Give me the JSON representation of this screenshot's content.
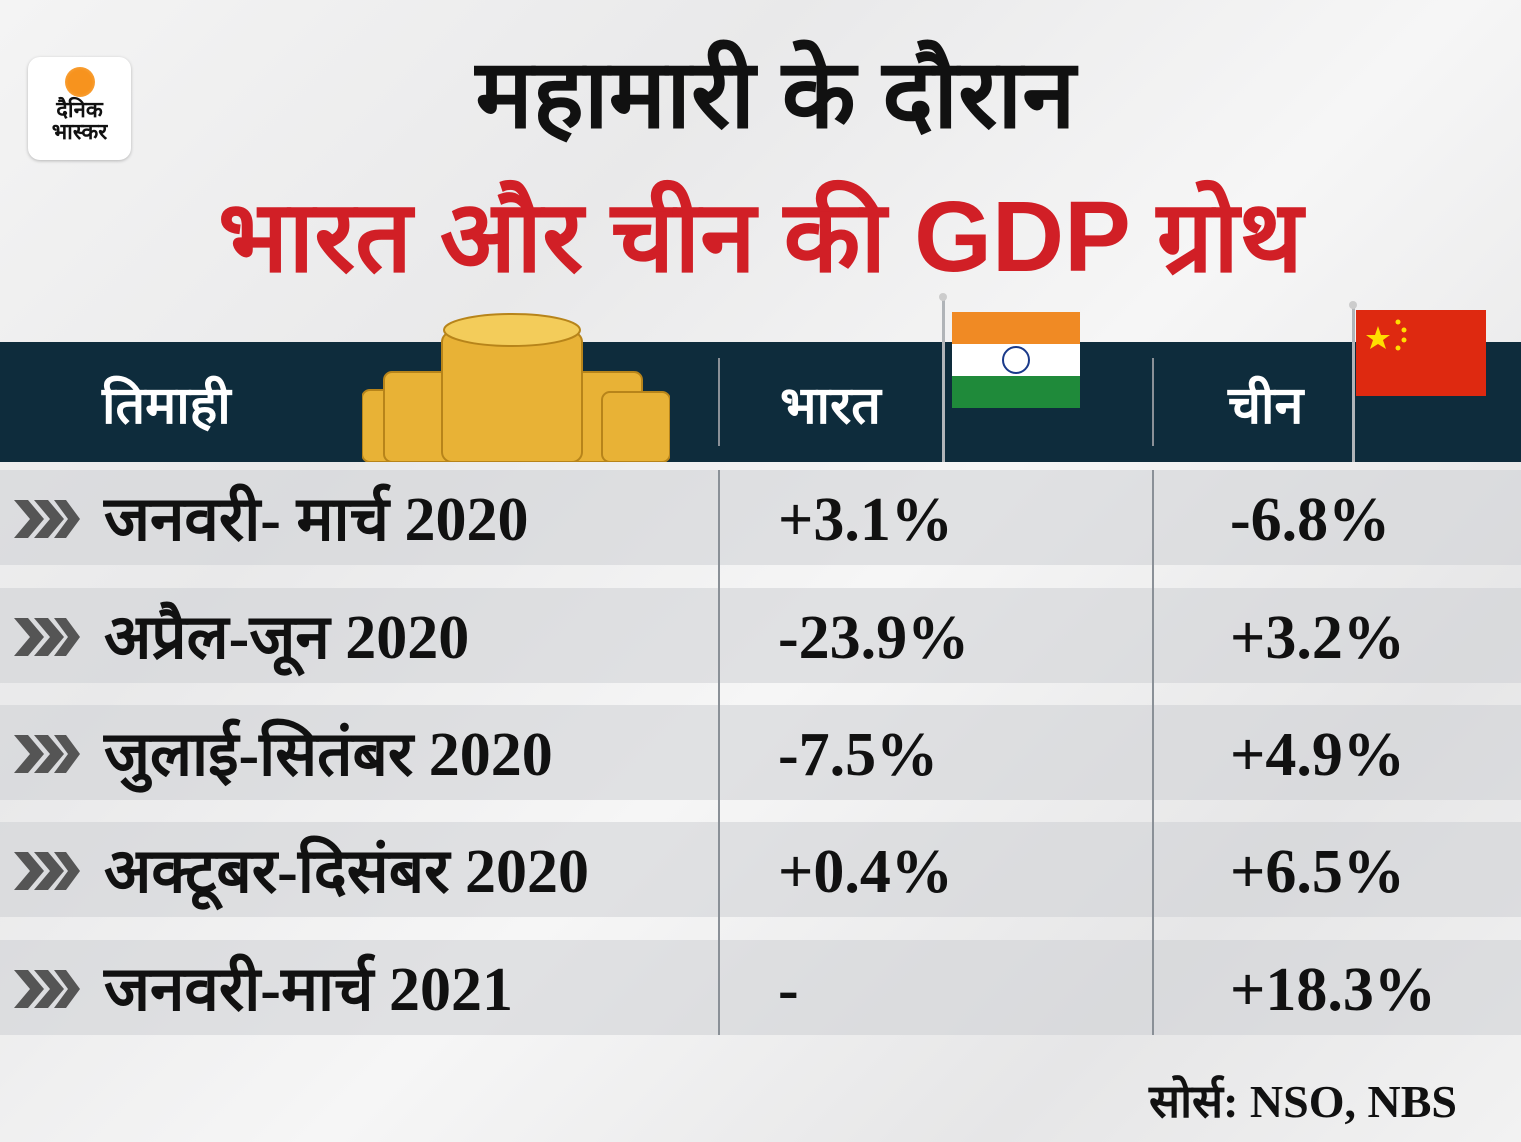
{
  "logo": {
    "line1": "दैनिक",
    "line2": "भास्कर",
    "sun_color": "#f7931e"
  },
  "title": {
    "line1": "महामारी के दौरान",
    "line2": "भारत और चीन की GDP ग्रोथ",
    "line2_color": "#d11f26"
  },
  "colors": {
    "header_bg": "#0e2c3c",
    "row_bg": "#dcdde0",
    "chevron": "#555555"
  },
  "chart_data": {
    "type": "table",
    "columns": [
      "तिमाही",
      "भारत",
      "चीन"
    ],
    "rows": [
      {
        "quarter": "जनवरी- मार्च 2020",
        "india": "+3.1%",
        "china": "-6.8%"
      },
      {
        "quarter": "अप्रैल-जून 2020",
        "india": "-23.9%",
        "china": "+3.2%"
      },
      {
        "quarter": "जुलाई-सितंबर 2020",
        "india": "-7.5%",
        "china": "+4.9%"
      },
      {
        "quarter": "अक्टूबर-दिसंबर 2020",
        "india": "+0.4%",
        "china": "+6.5%"
      },
      {
        "quarter": "जनवरी-मार्च 2021",
        "india": "-",
        "china": "+18.3%"
      }
    ]
  },
  "source": "सोर्स: NSO, NBS"
}
